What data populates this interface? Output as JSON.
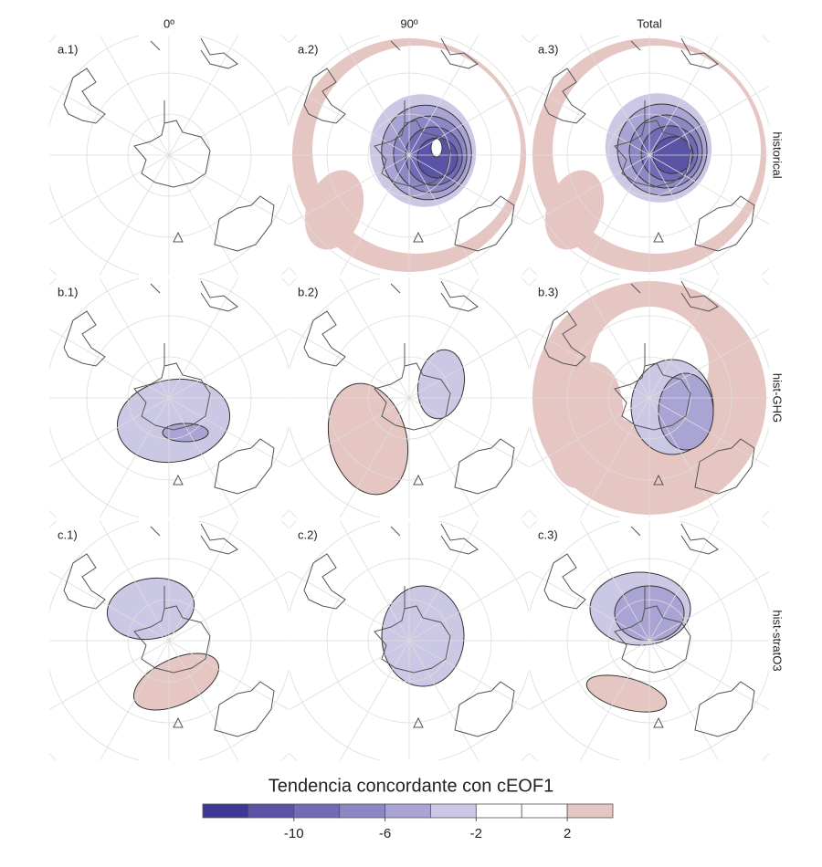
{
  "columns": [
    "0º",
    "90º",
    "Total"
  ],
  "rows": [
    "historical",
    "hist-GHG",
    "hist-stratO3"
  ],
  "panels": [
    [
      "a.1)",
      "a.2)",
      "a.3)"
    ],
    [
      "b.1)",
      "b.2)",
      "b.3)"
    ],
    [
      "c.1)",
      "c.2)",
      "c.3)"
    ]
  ],
  "legend": {
    "title": "Tendencia concordante con cEOF1",
    "colors": [
      "#3d3993",
      "#5a53a6",
      "#736bb5",
      "#8d87c4",
      "#a9a4d3",
      "#cbc8e5",
      "#ffffff",
      "#ffffff",
      "#e5c6c2"
    ],
    "limits": [
      -14,
      4
    ],
    "ticks": [
      -10,
      -6,
      -2,
      2
    ]
  }
}
